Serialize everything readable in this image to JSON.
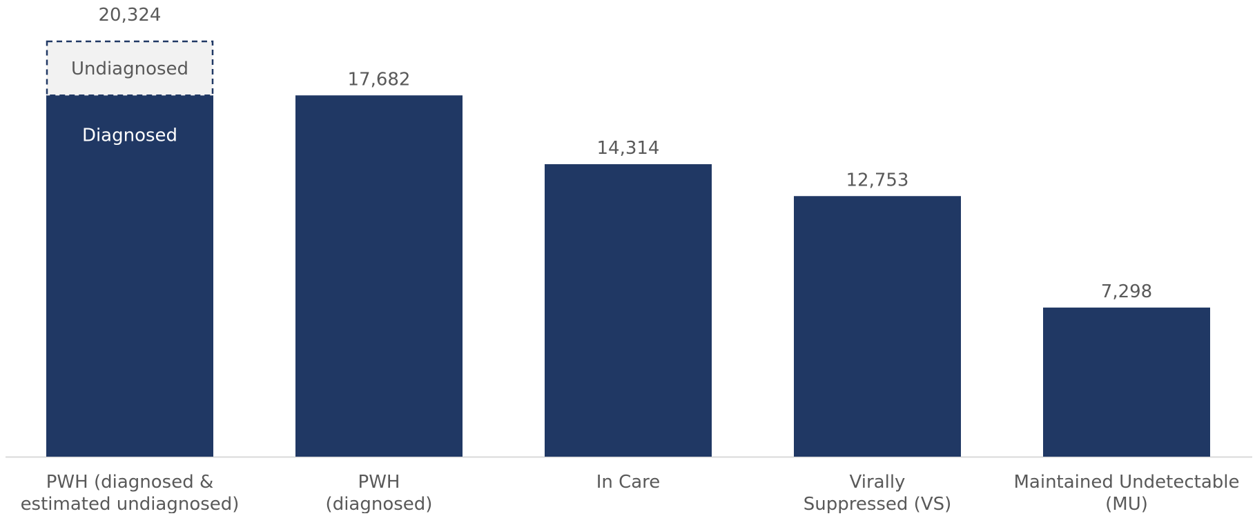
{
  "chart_data": {
    "type": "bar",
    "categories": [
      [
        "PWH (diagnosed &",
        "estimated undiagnosed)"
      ],
      [
        "PWH",
        "(diagnosed)"
      ],
      [
        "In Care"
      ],
      [
        "Virally",
        "Suppressed (VS)"
      ],
      [
        "Maintained Undetectable",
        "(MU)"
      ]
    ],
    "values": [
      20324,
      17682,
      14314,
      12753,
      7298
    ],
    "value_labels": [
      "20,324",
      "17,682",
      "14,314",
      "12,753",
      "7,298"
    ],
    "first_bar_segments": {
      "diagnosed": {
        "label": "Diagnosed",
        "value": 17682
      },
      "undiagnosed": {
        "label": "Undiagnosed",
        "value": 2642
      }
    },
    "title": "",
    "xlabel": "",
    "ylabel": "",
    "ylim": [
      0,
      20324
    ],
    "grid": false,
    "legend": "none",
    "colors": {
      "bar": "#203864",
      "undiagnosed_fill": "#F2F2F2",
      "undiagnosed_border": "#203864",
      "label_text": "#595959",
      "segment_text_dark": "#595959",
      "segment_text_light": "#FFFFFF",
      "axis_line": "#D9D9D9"
    }
  }
}
